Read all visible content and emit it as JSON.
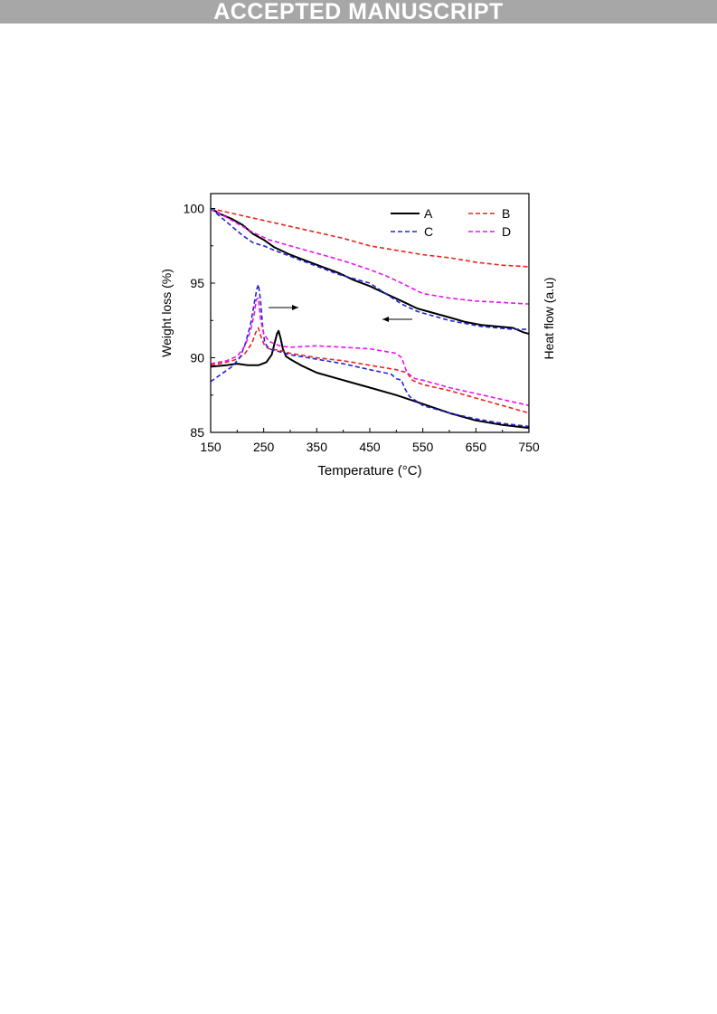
{
  "banner": {
    "text": "ACCEPTED MANUSCRIPT"
  },
  "chart_data": {
    "type": "line",
    "title": "",
    "xlabel": "Temperature (°C)",
    "ylabel": "Weight loss (%)",
    "y2label": "Heat flow (a.u)",
    "xlim": [
      150,
      750
    ],
    "ylim": [
      85,
      101
    ],
    "xticks": [
      150,
      250,
      350,
      450,
      550,
      650,
      750
    ],
    "yticks": [
      85,
      90,
      95,
      100
    ],
    "grid": false,
    "legend_position": "top-right",
    "annotations": [
      {
        "type": "arrow",
        "direction": "right",
        "points_to": "heat flow axis"
      },
      {
        "type": "arrow",
        "direction": "left",
        "points_to": "weight loss axis"
      }
    ],
    "series": [
      {
        "name": "A",
        "color": "#000000",
        "dash": "solid",
        "group": "weight_loss",
        "x": [
          150,
          170,
          190,
          210,
          230,
          250,
          270,
          300,
          330,
          360,
          390,
          420,
          450,
          480,
          510,
          540,
          570,
          600,
          630,
          660,
          690,
          720,
          740,
          750
        ],
        "y": [
          100.0,
          99.6,
          99.3,
          98.9,
          98.3,
          97.9,
          97.4,
          96.9,
          96.5,
          96.1,
          95.7,
          95.2,
          94.8,
          94.3,
          93.8,
          93.3,
          93.0,
          92.7,
          92.4,
          92.2,
          92.1,
          92.0,
          91.7,
          91.6
        ]
      },
      {
        "name": "B",
        "color": "#e8251f",
        "dash": "dashed",
        "group": "weight_loss",
        "x": [
          150,
          200,
          250,
          300,
          350,
          400,
          450,
          500,
          550,
          600,
          650,
          700,
          750
        ],
        "y": [
          100.0,
          99.6,
          99.2,
          98.8,
          98.4,
          98.0,
          97.5,
          97.2,
          96.9,
          96.7,
          96.4,
          96.2,
          96.1
        ]
      },
      {
        "name": "C",
        "color": "#2424d8",
        "dash": "dashed",
        "group": "weight_loss",
        "x": [
          150,
          170,
          190,
          210,
          230,
          250,
          270,
          300,
          330,
          360,
          390,
          420,
          450,
          480,
          510,
          540,
          570,
          600,
          630,
          660,
          690,
          720,
          750
        ],
        "y": [
          100.0,
          99.4,
          98.8,
          98.2,
          97.7,
          97.5,
          97.2,
          96.8,
          96.4,
          96.0,
          95.6,
          95.3,
          95.0,
          94.3,
          93.6,
          93.1,
          92.8,
          92.5,
          92.3,
          92.1,
          92.0,
          91.9,
          91.9
        ]
      },
      {
        "name": "D",
        "color": "#ee11ee",
        "dash": "dashed",
        "group": "weight_loss",
        "x": [
          150,
          190,
          230,
          260,
          300,
          350,
          400,
          450,
          480,
          510,
          550,
          600,
          650,
          700,
          750
        ],
        "y": [
          100.0,
          99.2,
          98.4,
          97.9,
          97.5,
          97.0,
          96.5,
          95.9,
          95.5,
          95.0,
          94.3,
          94.0,
          93.8,
          93.7,
          93.6
        ]
      },
      {
        "name": "A",
        "color": "#000000",
        "dash": "solid",
        "group": "heat_flow",
        "x": [
          150,
          180,
          200,
          220,
          240,
          255,
          265,
          270,
          275,
          278,
          282,
          286,
          292,
          300,
          320,
          350,
          400,
          450,
          500,
          550,
          600,
          650,
          700,
          750
        ],
        "y": [
          89.4,
          89.5,
          89.6,
          89.5,
          89.5,
          89.7,
          90.2,
          90.9,
          91.6,
          91.8,
          91.3,
          90.6,
          90.1,
          89.9,
          89.5,
          89.0,
          88.5,
          88.0,
          87.5,
          86.9,
          86.3,
          85.8,
          85.5,
          85.3
        ]
      },
      {
        "name": "B",
        "color": "#e8251f",
        "dash": "dashed",
        "group": "heat_flow",
        "x": [
          150,
          180,
          200,
          215,
          228,
          235,
          240,
          246,
          252,
          260,
          280,
          300,
          350,
          400,
          450,
          500,
          520,
          530,
          550,
          600,
          650,
          700,
          750
        ],
        "y": [
          89.5,
          89.7,
          89.9,
          90.3,
          91.0,
          91.7,
          92.0,
          91.3,
          90.8,
          90.6,
          90.5,
          90.3,
          90.0,
          89.8,
          89.5,
          89.2,
          89.0,
          88.5,
          88.2,
          87.8,
          87.3,
          86.8,
          86.3
        ]
      },
      {
        "name": "C",
        "color": "#2424d8",
        "dash": "dashed",
        "group": "heat_flow",
        "x": [
          150,
          170,
          190,
          205,
          215,
          225,
          232,
          237,
          240,
          244,
          248,
          252,
          260,
          280,
          300,
          350,
          400,
          450,
          490,
          500,
          510,
          515,
          525,
          550,
          600,
          650,
          700,
          750
        ],
        "y": [
          88.4,
          88.9,
          89.4,
          90.0,
          90.9,
          92.2,
          93.6,
          94.6,
          94.9,
          93.9,
          92.1,
          91.0,
          90.6,
          90.4,
          90.2,
          89.9,
          89.6,
          89.2,
          88.9,
          88.6,
          88.5,
          88.0,
          87.4,
          86.8,
          86.3,
          85.9,
          85.6,
          85.4
        ]
      },
      {
        "name": "D",
        "color": "#ee11ee",
        "dash": "dashed",
        "group": "heat_flow",
        "x": [
          150,
          180,
          200,
          215,
          225,
          232,
          236,
          240,
          244,
          250,
          260,
          280,
          300,
          350,
          400,
          450,
          500,
          510,
          520,
          535,
          550,
          600,
          650,
          700,
          750
        ],
        "y": [
          89.6,
          89.8,
          90.1,
          90.8,
          91.8,
          92.9,
          93.9,
          94.0,
          92.6,
          91.6,
          91.1,
          90.8,
          90.7,
          90.8,
          90.7,
          90.6,
          90.3,
          90.0,
          89.0,
          88.6,
          88.5,
          88.0,
          87.6,
          87.2,
          86.8
        ]
      }
    ]
  }
}
